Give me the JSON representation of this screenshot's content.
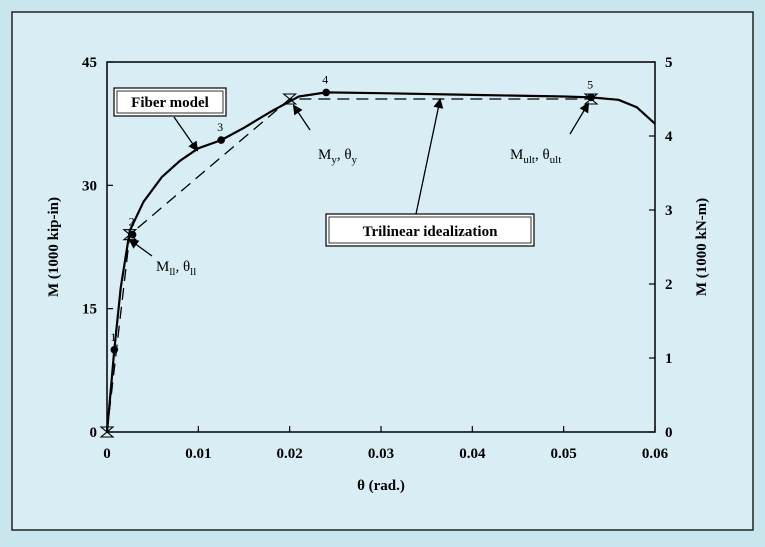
{
  "chart_data": {
    "type": "line",
    "title": "",
    "xlabel": "θ (rad.)",
    "ylabel": "M (1000 kip-in)",
    "y2label": "M (1000 kN-m)",
    "xlim": [
      0,
      0.06
    ],
    "ylim": [
      0,
      45
    ],
    "y2lim": [
      0,
      5
    ],
    "xticks": [
      "0",
      "0.01",
      "0.02",
      "0.03",
      "0.04",
      "0.05",
      "0.06"
    ],
    "yticks": [
      "0",
      "15",
      "30",
      "45"
    ],
    "y2ticks": [
      "0",
      "1",
      "2",
      "3",
      "4",
      "5"
    ],
    "series": [
      {
        "name": "Fiber model",
        "style": "solid",
        "color": "#000000",
        "x": [
          0,
          0.0004,
          0.0008,
          0.0015,
          0.0025,
          0.004,
          0.006,
          0.008,
          0.01,
          0.0125,
          0.015,
          0.018,
          0.021,
          0.024,
          0.03,
          0.04,
          0.05,
          0.053,
          0.056,
          0.058,
          0.06
        ],
        "y": [
          0,
          5,
          10,
          17.5,
          24.5,
          28,
          31,
          33,
          34.5,
          35.5,
          37,
          39,
          40.8,
          41.3,
          41.2,
          41,
          40.8,
          40.7,
          40.4,
          39.5,
          37.5
        ]
      },
      {
        "name": "Trilinear idealization",
        "style": "dashed",
        "color": "#000000",
        "x": [
          0,
          0.0025,
          0.02,
          0.053
        ],
        "y": [
          0,
          24,
          40.5,
          40.5
        ]
      }
    ],
    "points": [
      {
        "label": "1",
        "x": 0.0008,
        "y": 10
      },
      {
        "label": "2",
        "x": 0.0028,
        "y": 24
      },
      {
        "label": "3",
        "x": 0.0125,
        "y": 35.5
      },
      {
        "label": "4",
        "x": 0.024,
        "y": 41.3
      },
      {
        "label": "5",
        "x": 0.053,
        "y": 40.7
      }
    ],
    "idealization_markers": [
      {
        "x": 0,
        "y": 0
      },
      {
        "x": 0.0025,
        "y": 24
      },
      {
        "x": 0.02,
        "y": 40.5
      },
      {
        "x": 0.053,
        "y": 40.5
      }
    ],
    "annotations": {
      "fiber_model": "Fiber model",
      "trilinear": "Trilinear idealization",
      "cracking": "M",
      "cracking_sub": "ll",
      "cracking_theta": ", θ",
      "cracking_theta_sub": "ll",
      "yield": "M",
      "yield_sub": "y",
      "yield_theta": ", θ",
      "yield_theta_sub": "y",
      "ultimate": "M",
      "ultimate_sub": "ult",
      "ultimate_theta": ", θ",
      "ultimate_theta_sub": "ult"
    }
  }
}
